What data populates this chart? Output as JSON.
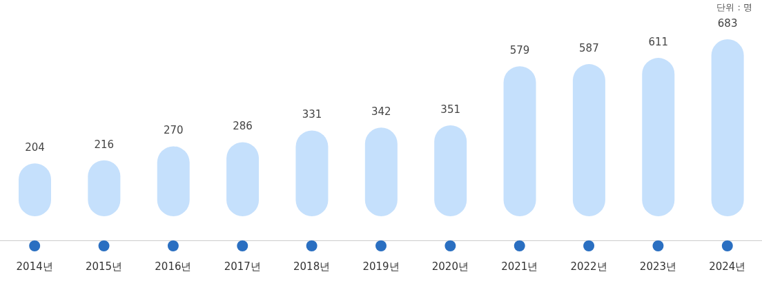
{
  "chart_data": {
    "type": "bar",
    "categories": [
      "2014년",
      "2015년",
      "2016년",
      "2017년",
      "2018년",
      "2019년",
      "2020년",
      "2021년",
      "2022년",
      "2023년",
      "2024년"
    ],
    "values": [
      204,
      216,
      270,
      286,
      331,
      342,
      351,
      579,
      587,
      611,
      683
    ],
    "color": "#c5e0fc",
    "data_labels": true,
    "annotations": [
      "단위 : 명"
    ]
  }
}
